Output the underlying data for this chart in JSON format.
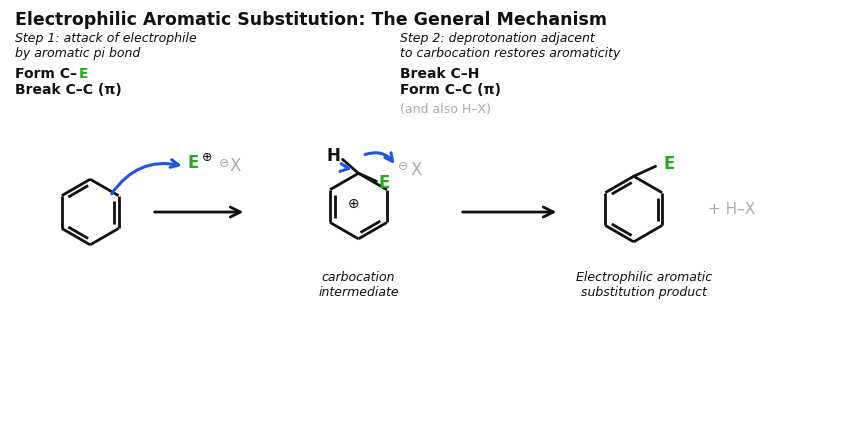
{
  "title": "Electrophilic Aromatic Substitution: The General Mechanism",
  "title_fontsize": 12.5,
  "step1_label": "Step 1: attack of electrophile\nby aromatic pi bond",
  "step2_label": "Step 2: deprotonation adjacent\nto carbocation restores aromaticity",
  "break_cc": "Break C–C (π)",
  "break_ch": "Break C–H",
  "form_cc": "Form C–C (π)",
  "also_hx": "(and also H–X)",
  "carbocation_label": "carbocation\nintermediate",
  "product_label": "Electrophilic aromatic\nsubstitution product",
  "bg_color": "#ffffff",
  "black": "#111111",
  "green": "#22aa22",
  "gray": "#aaaaaa",
  "blue": "#2255dd"
}
